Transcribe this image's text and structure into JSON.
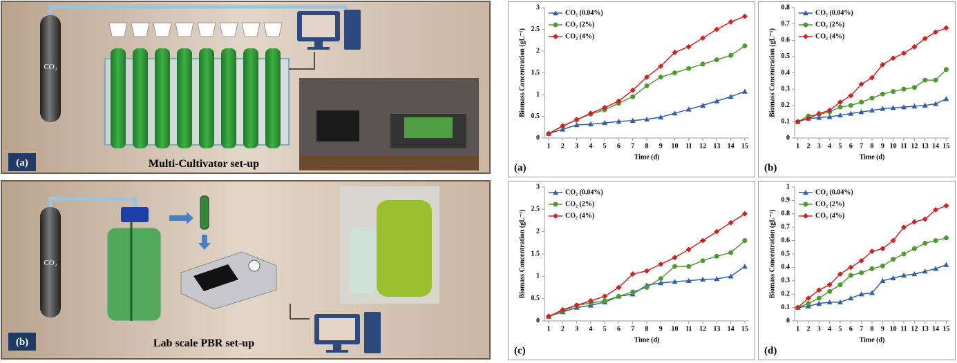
{
  "diagrams": [
    {
      "gas_label": "CO₂",
      "label": "(a)",
      "title": "Multi-Cultivator set-up"
    },
    {
      "gas_label": "CO₂",
      "label": "(b)",
      "title": "Lab scale PBR set-up"
    }
  ],
  "chart_data": [
    {
      "type": "line",
      "label": "(a)",
      "x_label": "Time (d)",
      "y_label": "Biomass Concentration (gL⁻¹)",
      "x": [
        1,
        2,
        3,
        4,
        5,
        6,
        7,
        8,
        9,
        10,
        11,
        12,
        13,
        14,
        15
      ],
      "xlim": [
        0.7,
        15.3
      ],
      "xticks": [
        1,
        2,
        3,
        4,
        5,
        6,
        7,
        8,
        9,
        10,
        11,
        12,
        13,
        14,
        15
      ],
      "ylim": [
        0,
        3
      ],
      "yticks": [
        0,
        0.5,
        1,
        1.5,
        2,
        2.5,
        3
      ],
      "series": [
        {
          "name": "CO₂ (0.04%)",
          "color": "#2e5fa8",
          "marker": "triangle",
          "values": [
            0.1,
            0.2,
            0.3,
            0.32,
            0.35,
            0.38,
            0.4,
            0.43,
            0.48,
            0.57,
            0.66,
            0.75,
            0.85,
            0.95,
            1.07
          ]
        },
        {
          "name": "CO₂ (2%)",
          "color": "#4d9a2e",
          "marker": "circle",
          "values": [
            0.1,
            0.27,
            0.42,
            0.55,
            0.65,
            0.8,
            0.95,
            1.2,
            1.4,
            1.5,
            1.6,
            1.7,
            1.8,
            1.9,
            2.12
          ]
        },
        {
          "name": "CO₂ (4%)",
          "color": "#d42020",
          "marker": "diamond",
          "values": [
            0.1,
            0.28,
            0.42,
            0.57,
            0.7,
            0.85,
            1.1,
            1.4,
            1.65,
            1.97,
            2.1,
            2.3,
            2.5,
            2.67,
            2.8
          ]
        }
      ]
    },
    {
      "type": "line",
      "label": "(b)",
      "x_label": "Time (d)",
      "y_label": "Biomass Concentration (gL⁻¹)",
      "x": [
        1,
        2,
        3,
        4,
        5,
        6,
        7,
        8,
        9,
        10,
        11,
        12,
        13,
        14,
        15
      ],
      "xlim": [
        0.7,
        15.3
      ],
      "xticks": [
        1,
        2,
        3,
        4,
        5,
        6,
        7,
        8,
        9,
        10,
        11,
        12,
        13,
        14,
        15
      ],
      "ylim": [
        0,
        0.8
      ],
      "yticks": [
        0,
        0.1,
        0.2,
        0.3,
        0.4,
        0.5,
        0.6,
        0.7,
        0.8
      ],
      "series": [
        {
          "name": "CO₂ (0.04%)",
          "color": "#2e5fa8",
          "marker": "triangle",
          "values": [
            0.1,
            0.12,
            0.125,
            0.13,
            0.14,
            0.15,
            0.16,
            0.17,
            0.18,
            0.185,
            0.19,
            0.195,
            0.2,
            0.21,
            0.24
          ]
        },
        {
          "name": "CO₂ (2%)",
          "color": "#4d9a2e",
          "marker": "circle",
          "values": [
            0.1,
            0.135,
            0.145,
            0.16,
            0.19,
            0.2,
            0.22,
            0.245,
            0.27,
            0.285,
            0.3,
            0.31,
            0.355,
            0.355,
            0.42
          ]
        },
        {
          "name": "CO₂ (4%)",
          "color": "#d42020",
          "marker": "diamond",
          "values": [
            0.1,
            0.12,
            0.15,
            0.17,
            0.22,
            0.26,
            0.33,
            0.37,
            0.45,
            0.49,
            0.52,
            0.56,
            0.61,
            0.65,
            0.675
          ]
        }
      ]
    },
    {
      "type": "line",
      "label": "(c)",
      "x_label": "Time (d)",
      "y_label": "Biomass Concentration (gL⁻¹)",
      "x": [
        1,
        2,
        3,
        4,
        5,
        6,
        7,
        8,
        9,
        10,
        11,
        12,
        13,
        14,
        15
      ],
      "xlim": [
        0.7,
        15.3
      ],
      "xticks": [
        1,
        2,
        3,
        4,
        5,
        6,
        7,
        8,
        9,
        10,
        11,
        12,
        13,
        14,
        15
      ],
      "ylim": [
        0,
        3
      ],
      "yticks": [
        0,
        0.5,
        1,
        1.5,
        2,
        2.5,
        3
      ],
      "series": [
        {
          "name": "CO₂ (0.04%)",
          "color": "#2e5fa8",
          "marker": "triangle",
          "values": [
            0.1,
            0.2,
            0.3,
            0.35,
            0.42,
            0.55,
            0.6,
            0.8,
            0.85,
            0.88,
            0.9,
            0.93,
            0.94,
            1.0,
            1.22
          ]
        },
        {
          "name": "CO₂ (2%)",
          "color": "#4d9a2e",
          "marker": "circle",
          "values": [
            0.1,
            0.22,
            0.35,
            0.4,
            0.45,
            0.55,
            0.65,
            0.75,
            0.95,
            1.22,
            1.22,
            1.35,
            1.45,
            1.53,
            1.8
          ]
        },
        {
          "name": "CO₂ (4%)",
          "color": "#d42020",
          "marker": "diamond",
          "values": [
            0.1,
            0.25,
            0.35,
            0.45,
            0.55,
            0.75,
            1.05,
            1.12,
            1.27,
            1.42,
            1.6,
            1.8,
            2.0,
            2.2,
            2.4
          ]
        }
      ]
    },
    {
      "type": "line",
      "label": "(d)",
      "x_label": "Time (d)",
      "y_label": "Biomass Concentration (gL⁻¹)",
      "x": [
        1,
        2,
        3,
        4,
        5,
        6,
        7,
        8,
        9,
        10,
        11,
        12,
        13,
        14,
        15
      ],
      "xlim": [
        0.7,
        15.3
      ],
      "xticks": [
        1,
        2,
        3,
        4,
        5,
        6,
        7,
        8,
        9,
        10,
        11,
        12,
        13,
        14,
        15
      ],
      "ylim": [
        0,
        1
      ],
      "yticks": [
        0,
        0.1,
        0.2,
        0.3,
        0.4,
        0.5,
        0.6,
        0.7,
        0.8,
        0.9,
        1
      ],
      "series": [
        {
          "name": "CO₂ (0.04%)",
          "color": "#2e5fa8",
          "marker": "triangle",
          "values": [
            0.1,
            0.11,
            0.13,
            0.14,
            0.14,
            0.17,
            0.2,
            0.21,
            0.3,
            0.32,
            0.34,
            0.35,
            0.37,
            0.39,
            0.42
          ]
        },
        {
          "name": "CO₂ (2%)",
          "color": "#4d9a2e",
          "marker": "circle",
          "values": [
            0.1,
            0.13,
            0.17,
            0.22,
            0.27,
            0.34,
            0.36,
            0.39,
            0.41,
            0.46,
            0.5,
            0.54,
            0.58,
            0.6,
            0.62
          ]
        },
        {
          "name": "CO₂ (4%)",
          "color": "#d42020",
          "marker": "diamond",
          "values": [
            0.1,
            0.17,
            0.23,
            0.27,
            0.35,
            0.4,
            0.45,
            0.52,
            0.54,
            0.6,
            0.7,
            0.74,
            0.76,
            0.83,
            0.86
          ]
        }
      ]
    }
  ]
}
